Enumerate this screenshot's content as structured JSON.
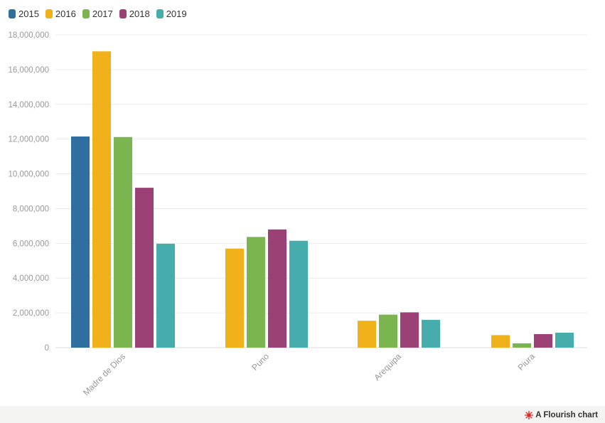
{
  "chart_data": {
    "type": "bar",
    "title": "",
    "xlabel": "",
    "ylabel": "",
    "categories": [
      "Madre de Dios",
      "Puno",
      "Arequipa",
      "Piura"
    ],
    "series": [
      {
        "name": "2015",
        "color": "#2f6f9f",
        "values": [
          12150000,
          0,
          0,
          0
        ]
      },
      {
        "name": "2016",
        "color": "#f0b11b",
        "values": [
          17050000,
          5700000,
          1550000,
          720000
        ]
      },
      {
        "name": "2017",
        "color": "#7ab550",
        "values": [
          12120000,
          6370000,
          1900000,
          250000
        ]
      },
      {
        "name": "2018",
        "color": "#9b4175",
        "values": [
          9200000,
          6800000,
          2030000,
          780000
        ]
      },
      {
        "name": "2019",
        "color": "#47adac",
        "values": [
          5980000,
          6150000,
          1600000,
          860000
        ]
      }
    ],
    "ylim": [
      0,
      18000000
    ],
    "yticks": [
      "0",
      "2,000,000",
      "4,000,000",
      "6,000,000",
      "8,000,000",
      "10,000,000",
      "12,000,000",
      "14,000,000",
      "16,000,000",
      "18,000,000"
    ],
    "grid": true,
    "legend_position": "top-left"
  },
  "credit": {
    "text": "A Flourish chart",
    "icon": "flourish-logo-icon",
    "icon_color": "#e0262b"
  }
}
